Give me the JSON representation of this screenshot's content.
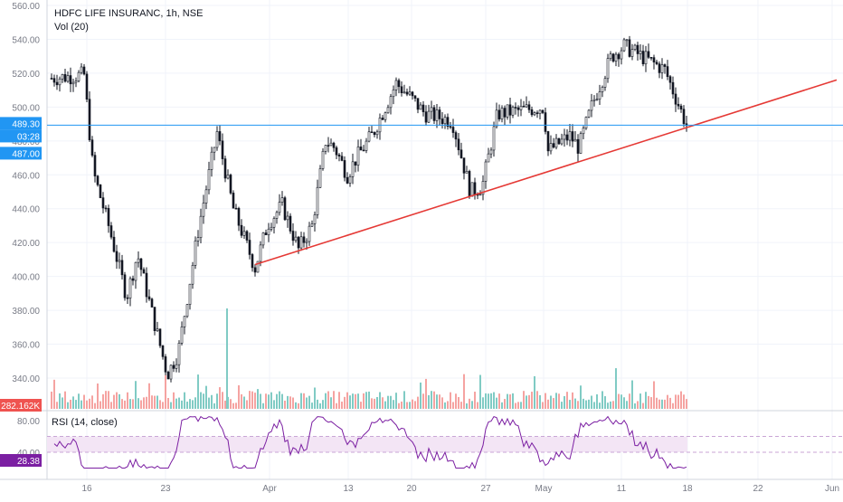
{
  "header": {
    "title": "HDFC LIFE INSURANC, 1h, NSE",
    "volume_label": "Vol (20)",
    "rsi_label": "RSI (14, close)"
  },
  "price_badges": {
    "last_price": "489.30",
    "countdown": "03:28",
    "lower_price": "487.00",
    "volume_value": "282.162K",
    "rsi_value": "28.38"
  },
  "colors": {
    "up": "#26a69a",
    "down": "#ef5350",
    "price_line": "#2196f3",
    "trendline": "#e53935",
    "rsi_line": "#7b1fa2",
    "rsi_band": "#f3e5f5",
    "volume_badge": "#ef5350",
    "rsi_badge": "#7b1fa2"
  },
  "chart_data": {
    "type": "candlestick",
    "title": "HDFC LIFE INSURANC, 1h, NSE",
    "price_axis": {
      "ticks": [
        "560.00",
        "540.00",
        "520.00",
        "500.00",
        "480.00",
        "460.00",
        "440.00",
        "420.00",
        "400.00",
        "380.00",
        "360.00",
        "340.00"
      ],
      "range": [
        330,
        565
      ]
    },
    "rsi_axis": {
      "ticks": [
        "80.00",
        "40.00"
      ],
      "range": [
        10,
        90
      ],
      "band": [
        40,
        60
      ]
    },
    "x_axis": {
      "ticks": [
        "16",
        "23",
        "Apr",
        "13",
        "20",
        "27",
        "May",
        "11",
        "18",
        "22",
        "Jun"
      ]
    },
    "price_path": [
      [
        "start",
        517
      ],
      [
        "16",
        519
      ],
      [
        "18",
        462
      ],
      [
        "20",
        430
      ],
      [
        "21",
        388
      ],
      [
        "22",
        413
      ],
      [
        "23",
        342
      ],
      [
        "24",
        355
      ],
      [
        "25",
        430
      ],
      [
        "27",
        485
      ],
      [
        "28",
        440
      ],
      [
        "30",
        405
      ],
      [
        "Apr",
        431
      ],
      [
        "3",
        442
      ],
      [
        "5",
        416
      ],
      [
        "7",
        430
      ],
      [
        "9",
        480
      ],
      [
        "11",
        476
      ],
      [
        "13",
        460
      ],
      [
        "15",
        470
      ],
      [
        "17",
        484
      ],
      [
        "19",
        514
      ],
      [
        "20",
        505
      ],
      [
        "22",
        496
      ],
      [
        "24",
        492
      ],
      [
        "26",
        450
      ],
      [
        "27",
        453
      ],
      [
        "29",
        496
      ],
      [
        "May",
        500
      ],
      [
        "3",
        474
      ],
      [
        "5",
        483
      ],
      [
        "7",
        476
      ],
      [
        "9",
        502
      ],
      [
        "11",
        530
      ],
      [
        "13",
        536
      ],
      [
        "15",
        522
      ],
      [
        "17",
        488
      ]
    ],
    "last_price": 489.3,
    "lower_price_tag": 487.0,
    "trendline": {
      "from": [
        "Apr-1",
        407
      ],
      "to": [
        "Jun",
        517
      ]
    },
    "volume_last": "282.162K",
    "rsi_last": 28.38
  }
}
